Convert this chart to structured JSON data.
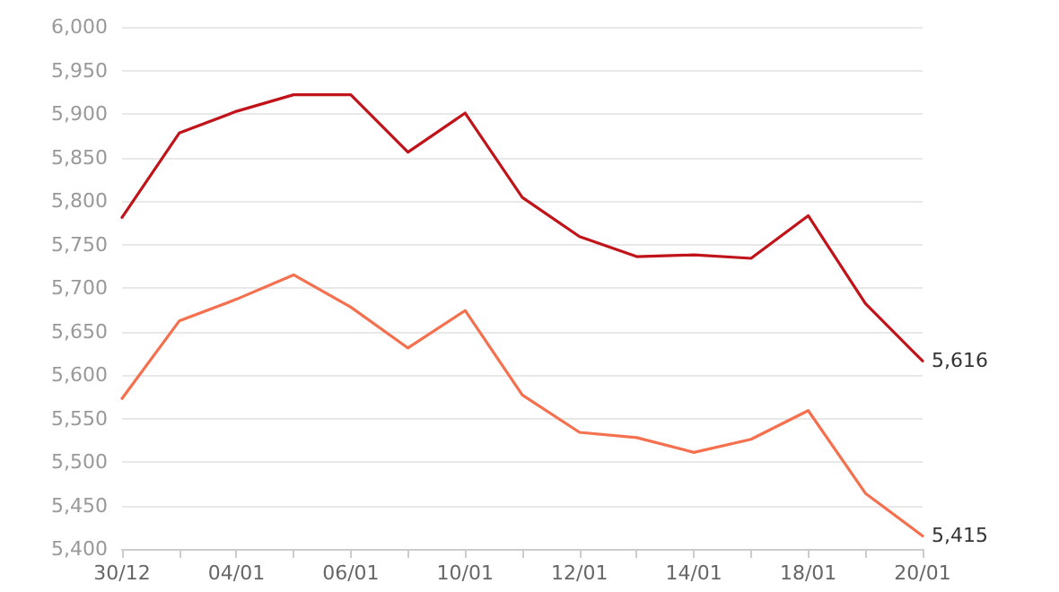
{
  "chart_data": {
    "type": "line",
    "categories": [
      "30/12",
      null,
      "04/01",
      null,
      "06/01",
      null,
      "10/01",
      null,
      "12/01",
      null,
      "14/01",
      null,
      "18/01",
      null,
      "20/01"
    ],
    "series": [
      {
        "color": "#c0141a",
        "values": [
          5781,
          5878,
          5903,
          5922,
          5922,
          5856,
          5901,
          5804,
          5759,
          5736,
          5738,
          5734,
          5783,
          5682,
          5616
        ],
        "value_labels": [
          null,
          null,
          null,
          null,
          null,
          null,
          null,
          null,
          null,
          null,
          null,
          null,
          null,
          null,
          "5,616"
        ]
      },
      {
        "color": "#f4704f",
        "values": [
          5573,
          5662,
          5687,
          5715,
          5678,
          5631,
          5674,
          5577,
          5534,
          5528,
          5511,
          5526,
          5559,
          5464,
          5415
        ],
        "value_labels": [
          null,
          null,
          null,
          null,
          null,
          null,
          null,
          null,
          null,
          null,
          null,
          null,
          null,
          null,
          "5,415"
        ]
      }
    ],
    "ylim": [
      5400,
      6000
    ],
    "yticks": [
      {
        "value": 5400,
        "label": "5,400"
      },
      {
        "value": 5450,
        "label": "5,450"
      },
      {
        "value": 5500,
        "label": "5,500"
      },
      {
        "value": 5550,
        "label": "5,550"
      },
      {
        "value": 5600,
        "label": "5,600"
      },
      {
        "value": 5650,
        "label": "5,650"
      },
      {
        "value": 5700,
        "label": "5,700"
      },
      {
        "value": 5750,
        "label": "5,750"
      },
      {
        "value": 5800,
        "label": "5,800"
      },
      {
        "value": 5850,
        "label": "5,850"
      },
      {
        "value": 5900,
        "label": "5,900"
      },
      {
        "value": 5950,
        "label": "5,950"
      },
      {
        "value": 6000,
        "label": "6,000"
      }
    ],
    "grid": "y",
    "marker": "none",
    "line_style": "solid"
  }
}
